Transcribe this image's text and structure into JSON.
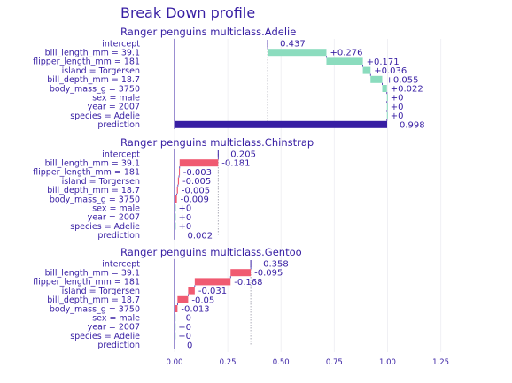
{
  "chart_data": {
    "type": "bar",
    "title": "Break Down profile",
    "x_ticks": [
      "0.00",
      "0.25",
      "0.50",
      "0.75",
      "1.00",
      "1.25"
    ],
    "xlim": [
      0,
      1.25
    ],
    "grid": true,
    "colors": {
      "title": "#371ea3",
      "positive": "#8bdcbe",
      "negative": "#f05a71",
      "prediction": "#371ea3",
      "intercept_line": "#371ea3",
      "grid": "#f0f0f4"
    },
    "panels": [
      {
        "title": "Ranger penguins multiclass.Adelie",
        "variables": [
          "intercept",
          "bill_length_mm = 39.1",
          "flipper_length_mm = 181",
          "island = Torgersen",
          "bill_depth_mm = 18.7",
          "body_mass_g = 3750",
          "sex = male",
          "year = 2007",
          "species = Adelie",
          "prediction"
        ],
        "contributions": [
          0.437,
          0.276,
          0.171,
          0.036,
          0.055,
          0.022,
          0,
          0,
          0,
          0.998
        ],
        "labels": [
          "0.437",
          "+0.276",
          "+0.171",
          "+0.036",
          "+0.055",
          "+0.022",
          "+0",
          "+0",
          "+0",
          "0.998"
        ]
      },
      {
        "title": "Ranger penguins multiclass.Chinstrap",
        "variables": [
          "intercept",
          "bill_length_mm = 39.1",
          "flipper_length_mm = 181",
          "island = Torgersen",
          "bill_depth_mm = 18.7",
          "body_mass_g = 3750",
          "sex = male",
          "year = 2007",
          "species = Adelie",
          "prediction"
        ],
        "contributions": [
          0.205,
          -0.181,
          -0.003,
          -0.005,
          -0.005,
          -0.009,
          0,
          0,
          0,
          0.002
        ],
        "labels": [
          "0.205",
          "-0.181",
          "-0.003",
          "-0.005",
          "-0.005",
          "-0.009",
          "+0",
          "+0",
          "+0",
          "0.002"
        ]
      },
      {
        "title": "Ranger penguins multiclass.Gentoo",
        "variables": [
          "intercept",
          "bill_length_mm = 39.1",
          "flipper_length_mm = 181",
          "island = Torgersen",
          "bill_depth_mm = 18.7",
          "body_mass_g = 3750",
          "sex = male",
          "year = 2007",
          "species = Adelie",
          "prediction"
        ],
        "contributions": [
          0.358,
          -0.095,
          -0.168,
          -0.031,
          -0.05,
          -0.013,
          0,
          0,
          0,
          0
        ],
        "labels": [
          "0.358",
          "-0.095",
          "-0.168",
          "-0.031",
          "-0.05",
          "-0.013",
          "+0",
          "+0",
          "+0",
          "0"
        ]
      }
    ]
  }
}
